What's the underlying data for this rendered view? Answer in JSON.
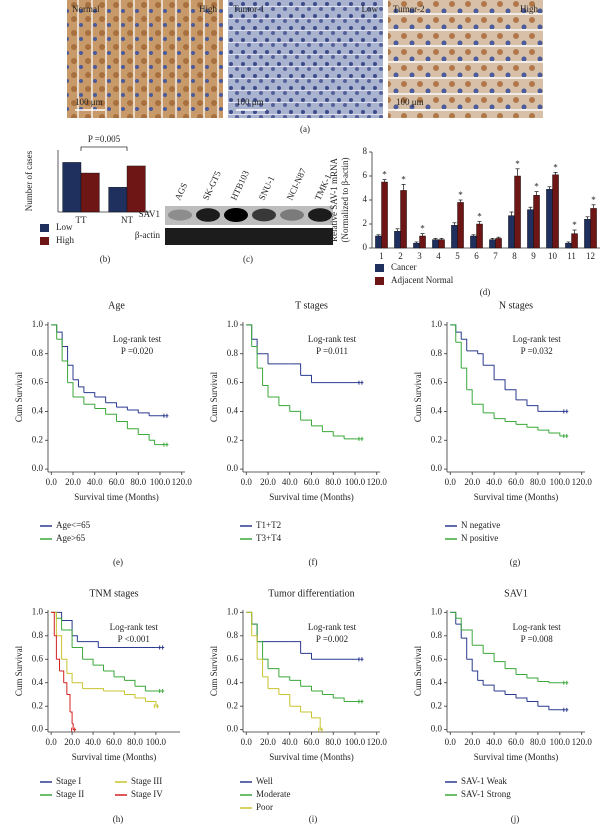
{
  "panel_a": {
    "label": "(a)",
    "images": [
      {
        "tissue": "Normal",
        "level": "High",
        "scale": "100 μm"
      },
      {
        "tissue": "Tumor-1",
        "level": "Low",
        "scale": "100 μm"
      },
      {
        "tissue": "Tumor-2",
        "level": "High",
        "scale": "100 μm"
      }
    ]
  },
  "blot": {
    "label": "(c)",
    "lanes": [
      "AGS",
      "SK-GT5",
      "HTB103",
      "SNU-1",
      "NCI-N87",
      "TMK-1"
    ],
    "rows": [
      "SAV1",
      "β-actin"
    ]
  },
  "chart_data": [
    {
      "type": "bar",
      "panel": "(b)",
      "ylabel": "Number of cases",
      "categories": [
        "TT",
        "NT"
      ],
      "series": [
        {
          "name": "Low",
          "color": "#1f2f5e",
          "values": [
            56,
            28
          ]
        },
        {
          "name": "High",
          "color": "#6e1515",
          "values": [
            44,
            52
          ]
        }
      ],
      "ylim": [
        0,
        70
      ],
      "annotations": [
        "P =0.005"
      ]
    },
    {
      "type": "bar",
      "panel": "(d)",
      "ylabel": [
        "Relative SAV-1 mRNA",
        "(Normalized to β-actin)"
      ],
      "categories": [
        "1",
        "2",
        "3",
        "4",
        "5",
        "6",
        "7",
        "8",
        "9",
        "10",
        "11",
        "12"
      ],
      "series": [
        {
          "name": "Cancer",
          "color": "#1f2f5e",
          "values": [
            1.0,
            1.4,
            0.4,
            0.7,
            1.9,
            1.0,
            0.7,
            2.7,
            3.2,
            4.9,
            0.4,
            2.4
          ],
          "errors": [
            0.1,
            0.2,
            0.1,
            0.1,
            0.2,
            0.1,
            0.1,
            0.3,
            0.2,
            0.2,
            0.1,
            0.2
          ]
        },
        {
          "name": "Adjacent Normal",
          "color": "#6e1515",
          "values": [
            5.5,
            4.8,
            1.0,
            0.7,
            3.8,
            2.0,
            0.8,
            6.0,
            4.4,
            6.1,
            1.2,
            3.3
          ],
          "errors": [
            0.2,
            0.5,
            0.2,
            0.1,
            0.2,
            0.2,
            0.1,
            0.6,
            0.3,
            0.2,
            0.3,
            0.3
          ]
        }
      ],
      "significance": [
        "*",
        "*",
        "*",
        null,
        "*",
        "*",
        null,
        "*",
        "*",
        "*",
        "*",
        "*"
      ],
      "ylim": [
        0,
        8
      ],
      "yticks": [
        0,
        2,
        4,
        6,
        8
      ]
    },
    {
      "type": "line",
      "panel": "(e)",
      "title": "Age",
      "xlabel": "Survival time (Months)",
      "ylabel": "Cum Survival",
      "annotations": [
        "Log-rank test",
        "P =0.020"
      ],
      "series": [
        {
          "name": "Age<=65",
          "color": "#2b3a8f",
          "x": [
            0,
            5,
            10,
            15,
            20,
            25,
            30,
            40,
            50,
            60,
            70,
            80,
            90,
            105
          ],
          "values": [
            1,
            0.95,
            0.85,
            0.72,
            0.62,
            0.57,
            0.53,
            0.5,
            0.46,
            0.43,
            0.41,
            0.39,
            0.37,
            0.37
          ]
        },
        {
          "name": "Age>65",
          "color": "#3aa83a",
          "x": [
            0,
            5,
            10,
            15,
            20,
            30,
            40,
            50,
            60,
            70,
            80,
            90,
            95,
            105
          ],
          "values": [
            1,
            0.9,
            0.75,
            0.6,
            0.5,
            0.45,
            0.42,
            0.38,
            0.33,
            0.28,
            0.24,
            0.2,
            0.17,
            0.17
          ]
        }
      ],
      "xlim": [
        -3,
        123
      ],
      "ylim": [
        -0.02,
        1.02
      ],
      "xticks": [
        {
          "value": 0,
          "label": "0.0"
        },
        {
          "value": 20,
          "label": "20.0"
        },
        {
          "value": 40,
          "label": "40.0"
        },
        {
          "value": 60,
          "label": "60.0"
        },
        {
          "value": 80,
          "label": "80.0"
        },
        {
          "value": 100,
          "label": "100.0"
        },
        {
          "value": 120,
          "label": "120.0"
        }
      ],
      "yticks": [
        {
          "value": 0,
          "label": "0.0"
        },
        {
          "value": 0.2,
          "label": "0.2"
        },
        {
          "value": 0.4,
          "label": "0.4"
        },
        {
          "value": 0.6,
          "label": "0.6"
        },
        {
          "value": 0.8,
          "label": "0.8"
        },
        {
          "value": 1,
          "label": "1.0"
        }
      ]
    },
    {
      "type": "line",
      "panel": "(f)",
      "title": "T stages",
      "xlabel": "Survival time (Months)",
      "ylabel": "Cum Survival",
      "annotations": [
        "Log-rank test",
        "P =0.011"
      ],
      "series": [
        {
          "name": "T1+T2",
          "color": "#2b3a8f",
          "x": [
            0,
            5,
            10,
            20,
            40,
            50,
            60,
            100,
            105
          ],
          "values": [
            1,
            0.9,
            0.8,
            0.73,
            0.73,
            0.65,
            0.6,
            0.6,
            0.6
          ]
        },
        {
          "name": "T3+T4",
          "color": "#3aa83a",
          "x": [
            0,
            5,
            10,
            15,
            20,
            30,
            40,
            50,
            60,
            70,
            80,
            90,
            105
          ],
          "values": [
            1,
            0.85,
            0.7,
            0.58,
            0.5,
            0.44,
            0.4,
            0.34,
            0.3,
            0.26,
            0.23,
            0.21,
            0.21
          ]
        }
      ],
      "xlim": [
        -3,
        123
      ],
      "ylim": [
        -0.02,
        1.02
      ],
      "xticks": [
        {
          "value": 0,
          "label": "0.0"
        },
        {
          "value": 20,
          "label": "20.0"
        },
        {
          "value": 40,
          "label": "40.0"
        },
        {
          "value": 60,
          "label": "60.0"
        },
        {
          "value": 80,
          "label": "80.0"
        },
        {
          "value": 100,
          "label": "100.0"
        },
        {
          "value": 120,
          "label": "120.0"
        }
      ],
      "yticks": [
        {
          "value": 0,
          "label": "0.0"
        },
        {
          "value": 0.2,
          "label": "0.2"
        },
        {
          "value": 0.4,
          "label": "0.4"
        },
        {
          "value": 0.6,
          "label": "0.6"
        },
        {
          "value": 0.8,
          "label": "0.8"
        },
        {
          "value": 1,
          "label": "1.0"
        }
      ]
    },
    {
      "type": "line",
      "panel": "(g)",
      "title": "N stages",
      "xlabel": "Survival time (Months)",
      "ylabel": "Cum Survival",
      "annotations": [
        "Log-rank test",
        "P =0.032"
      ],
      "series": [
        {
          "name": "N negative",
          "color": "#2b3a8f",
          "x": [
            0,
            5,
            10,
            15,
            25,
            30,
            40,
            50,
            60,
            70,
            80,
            100,
            105
          ],
          "values": [
            1,
            0.95,
            0.9,
            0.82,
            0.8,
            0.72,
            0.62,
            0.55,
            0.48,
            0.44,
            0.4,
            0.4,
            0.4
          ]
        },
        {
          "name": "N positive",
          "color": "#3aa83a",
          "x": [
            0,
            5,
            10,
            15,
            20,
            30,
            40,
            50,
            60,
            70,
            80,
            90,
            100,
            105
          ],
          "values": [
            1,
            0.88,
            0.7,
            0.55,
            0.45,
            0.39,
            0.35,
            0.33,
            0.31,
            0.29,
            0.27,
            0.25,
            0.23,
            0.23
          ]
        }
      ],
      "xlim": [
        -3,
        123
      ],
      "ylim": [
        -0.02,
        1.02
      ],
      "xticks": [
        {
          "value": 0,
          "label": "0.0"
        },
        {
          "value": 20,
          "label": "20.0"
        },
        {
          "value": 40,
          "label": "40.0"
        },
        {
          "value": 60,
          "label": "60.0"
        },
        {
          "value": 80,
          "label": "80.0"
        },
        {
          "value": 100,
          "label": "100.0"
        },
        {
          "value": 120,
          "label": "120.0"
        }
      ],
      "yticks": [
        {
          "value": 0,
          "label": "0.0"
        },
        {
          "value": 0.2,
          "label": "0.2"
        },
        {
          "value": 0.4,
          "label": "0.4"
        },
        {
          "value": 0.6,
          "label": "0.6"
        },
        {
          "value": 0.8,
          "label": "0.8"
        },
        {
          "value": 1,
          "label": "1.0"
        }
      ]
    },
    {
      "type": "line",
      "panel": "(h)",
      "title": "TNM stages",
      "xlabel": "Survival time (Months)",
      "ylabel": "Cum Survival",
      "annotations": [
        "Log-rank test",
        "P <0.001"
      ],
      "series": [
        {
          "name": "Stage I",
          "color": "#2b3a8f",
          "x": [
            0,
            10,
            20,
            25,
            45,
            100,
            105
          ],
          "values": [
            1,
            0.93,
            0.8,
            0.75,
            0.7,
            0.7,
            0.7
          ]
        },
        {
          "name": "Stage II",
          "color": "#3aa83a",
          "x": [
            0,
            5,
            10,
            20,
            30,
            40,
            50,
            60,
            70,
            80,
            90,
            105
          ],
          "values": [
            1,
            0.95,
            0.85,
            0.7,
            0.6,
            0.55,
            0.5,
            0.45,
            0.42,
            0.37,
            0.33,
            0.33
          ]
        },
        {
          "name": "Stage III",
          "color": "#c8c430",
          "x": [
            0,
            5,
            10,
            15,
            20,
            30,
            50,
            70,
            80,
            90,
            100
          ],
          "values": [
            1,
            0.8,
            0.6,
            0.48,
            0.4,
            0.35,
            0.33,
            0.3,
            0.27,
            0.24,
            0.2
          ]
        },
        {
          "name": "Stage IV",
          "color": "#d42020",
          "x": [
            0,
            3,
            5,
            8,
            12,
            15,
            18,
            20,
            21
          ],
          "values": [
            1,
            0.8,
            0.6,
            0.5,
            0.4,
            0.3,
            0.15,
            0.05,
            0
          ]
        }
      ],
      "xlim": [
        -3,
        123
      ],
      "ylim": [
        -0.02,
        1.02
      ],
      "xticks": [
        {
          "value": 0,
          "label": "0.0"
        },
        {
          "value": 20,
          "label": "20.0"
        },
        {
          "value": 40,
          "label": "40.0"
        },
        {
          "value": 60,
          "label": "60.0"
        },
        {
          "value": 80,
          "label": "80.0"
        },
        {
          "value": 100,
          "label": "100.0"
        }
      ],
      "yticks": [
        {
          "value": 0,
          "label": "0.0"
        },
        {
          "value": 0.2,
          "label": "0.2"
        },
        {
          "value": 0.4,
          "label": "0.4"
        },
        {
          "value": 0.6,
          "label": "0.6"
        },
        {
          "value": 0.8,
          "label": "0.8"
        },
        {
          "value": 1,
          "label": "1.0"
        }
      ]
    },
    {
      "type": "line",
      "panel": "(i)",
      "title": "Tumor differentiation",
      "xlabel": "Survival time (Months)",
      "ylabel": "Cum Survival",
      "annotations": [
        "Log-rank test",
        "P =0.002"
      ],
      "series": [
        {
          "name": "Well",
          "color": "#2b3a8f",
          "x": [
            0,
            5,
            10,
            40,
            50,
            60,
            105
          ],
          "values": [
            1,
            0.9,
            0.75,
            0.75,
            0.65,
            0.6,
            0.6
          ]
        },
        {
          "name": "Moderate",
          "color": "#3aa83a",
          "x": [
            0,
            5,
            10,
            15,
            20,
            30,
            40,
            50,
            60,
            70,
            80,
            90,
            105
          ],
          "values": [
            1,
            0.9,
            0.75,
            0.6,
            0.52,
            0.45,
            0.42,
            0.37,
            0.33,
            0.3,
            0.27,
            0.24,
            0.24
          ]
        },
        {
          "name": "Poor",
          "color": "#c8c430",
          "x": [
            0,
            5,
            10,
            15,
            20,
            30,
            40,
            50,
            60,
            68
          ],
          "values": [
            1,
            0.8,
            0.6,
            0.45,
            0.35,
            0.3,
            0.2,
            0.15,
            0.1,
            0
          ]
        }
      ],
      "xlim": [
        -3,
        123
      ],
      "ylim": [
        -0.02,
        1.02
      ],
      "xticks": [
        {
          "value": 0,
          "label": "0.0"
        },
        {
          "value": 20,
          "label": "20.0"
        },
        {
          "value": 40,
          "label": "40.0"
        },
        {
          "value": 60,
          "label": "60.0"
        },
        {
          "value": 80,
          "label": "80.0"
        },
        {
          "value": 100,
          "label": "100.0"
        },
        {
          "value": 120,
          "label": "120.0"
        }
      ],
      "yticks": [
        {
          "value": 0,
          "label": "0.0"
        },
        {
          "value": 0.2,
          "label": "0.2"
        },
        {
          "value": 0.4,
          "label": "0.4"
        },
        {
          "value": 0.6,
          "label": "0.6"
        },
        {
          "value": 0.8,
          "label": "0.8"
        },
        {
          "value": 1,
          "label": "1.0"
        }
      ]
    },
    {
      "type": "line",
      "panel": "(j)",
      "title": "SAV1",
      "xlabel": "Survival time (Months)",
      "ylabel": "Cum Survival",
      "annotations": [
        "Log-rank test",
        "P =0.008"
      ],
      "series": [
        {
          "name": "SAV-1 Weak",
          "color": "#2b3a8f",
          "x": [
            0,
            5,
            10,
            15,
            20,
            25,
            30,
            40,
            50,
            60,
            70,
            80,
            90,
            105
          ],
          "values": [
            1,
            0.9,
            0.78,
            0.6,
            0.5,
            0.42,
            0.38,
            0.33,
            0.3,
            0.27,
            0.24,
            0.2,
            0.17,
            0.17
          ]
        },
        {
          "name": "SAV-1 Strong",
          "color": "#3aa83a",
          "x": [
            0,
            5,
            10,
            20,
            30,
            40,
            50,
            60,
            70,
            80,
            90,
            105
          ],
          "values": [
            1,
            0.95,
            0.85,
            0.72,
            0.65,
            0.58,
            0.52,
            0.47,
            0.44,
            0.41,
            0.4,
            0.4
          ]
        }
      ],
      "xlim": [
        -3,
        123
      ],
      "ylim": [
        -0.02,
        1.02
      ],
      "xticks": [
        {
          "value": 0,
          "label": "0.0"
        },
        {
          "value": 20,
          "label": "20.0"
        },
        {
          "value": 40,
          "label": "40.0"
        },
        {
          "value": 60,
          "label": "60.0"
        },
        {
          "value": 80,
          "label": "80.0"
        },
        {
          "value": 100,
          "label": "100.0"
        },
        {
          "value": 120,
          "label": "120.0"
        }
      ],
      "yticks": [
        {
          "value": 0,
          "label": "0.0"
        },
        {
          "value": 0.2,
          "label": "0.2"
        },
        {
          "value": 0.4,
          "label": "0.4"
        },
        {
          "value": 0.6,
          "label": "0.6"
        },
        {
          "value": 0.8,
          "label": "0.8"
        },
        {
          "value": 1,
          "label": "1.0"
        }
      ]
    }
  ]
}
